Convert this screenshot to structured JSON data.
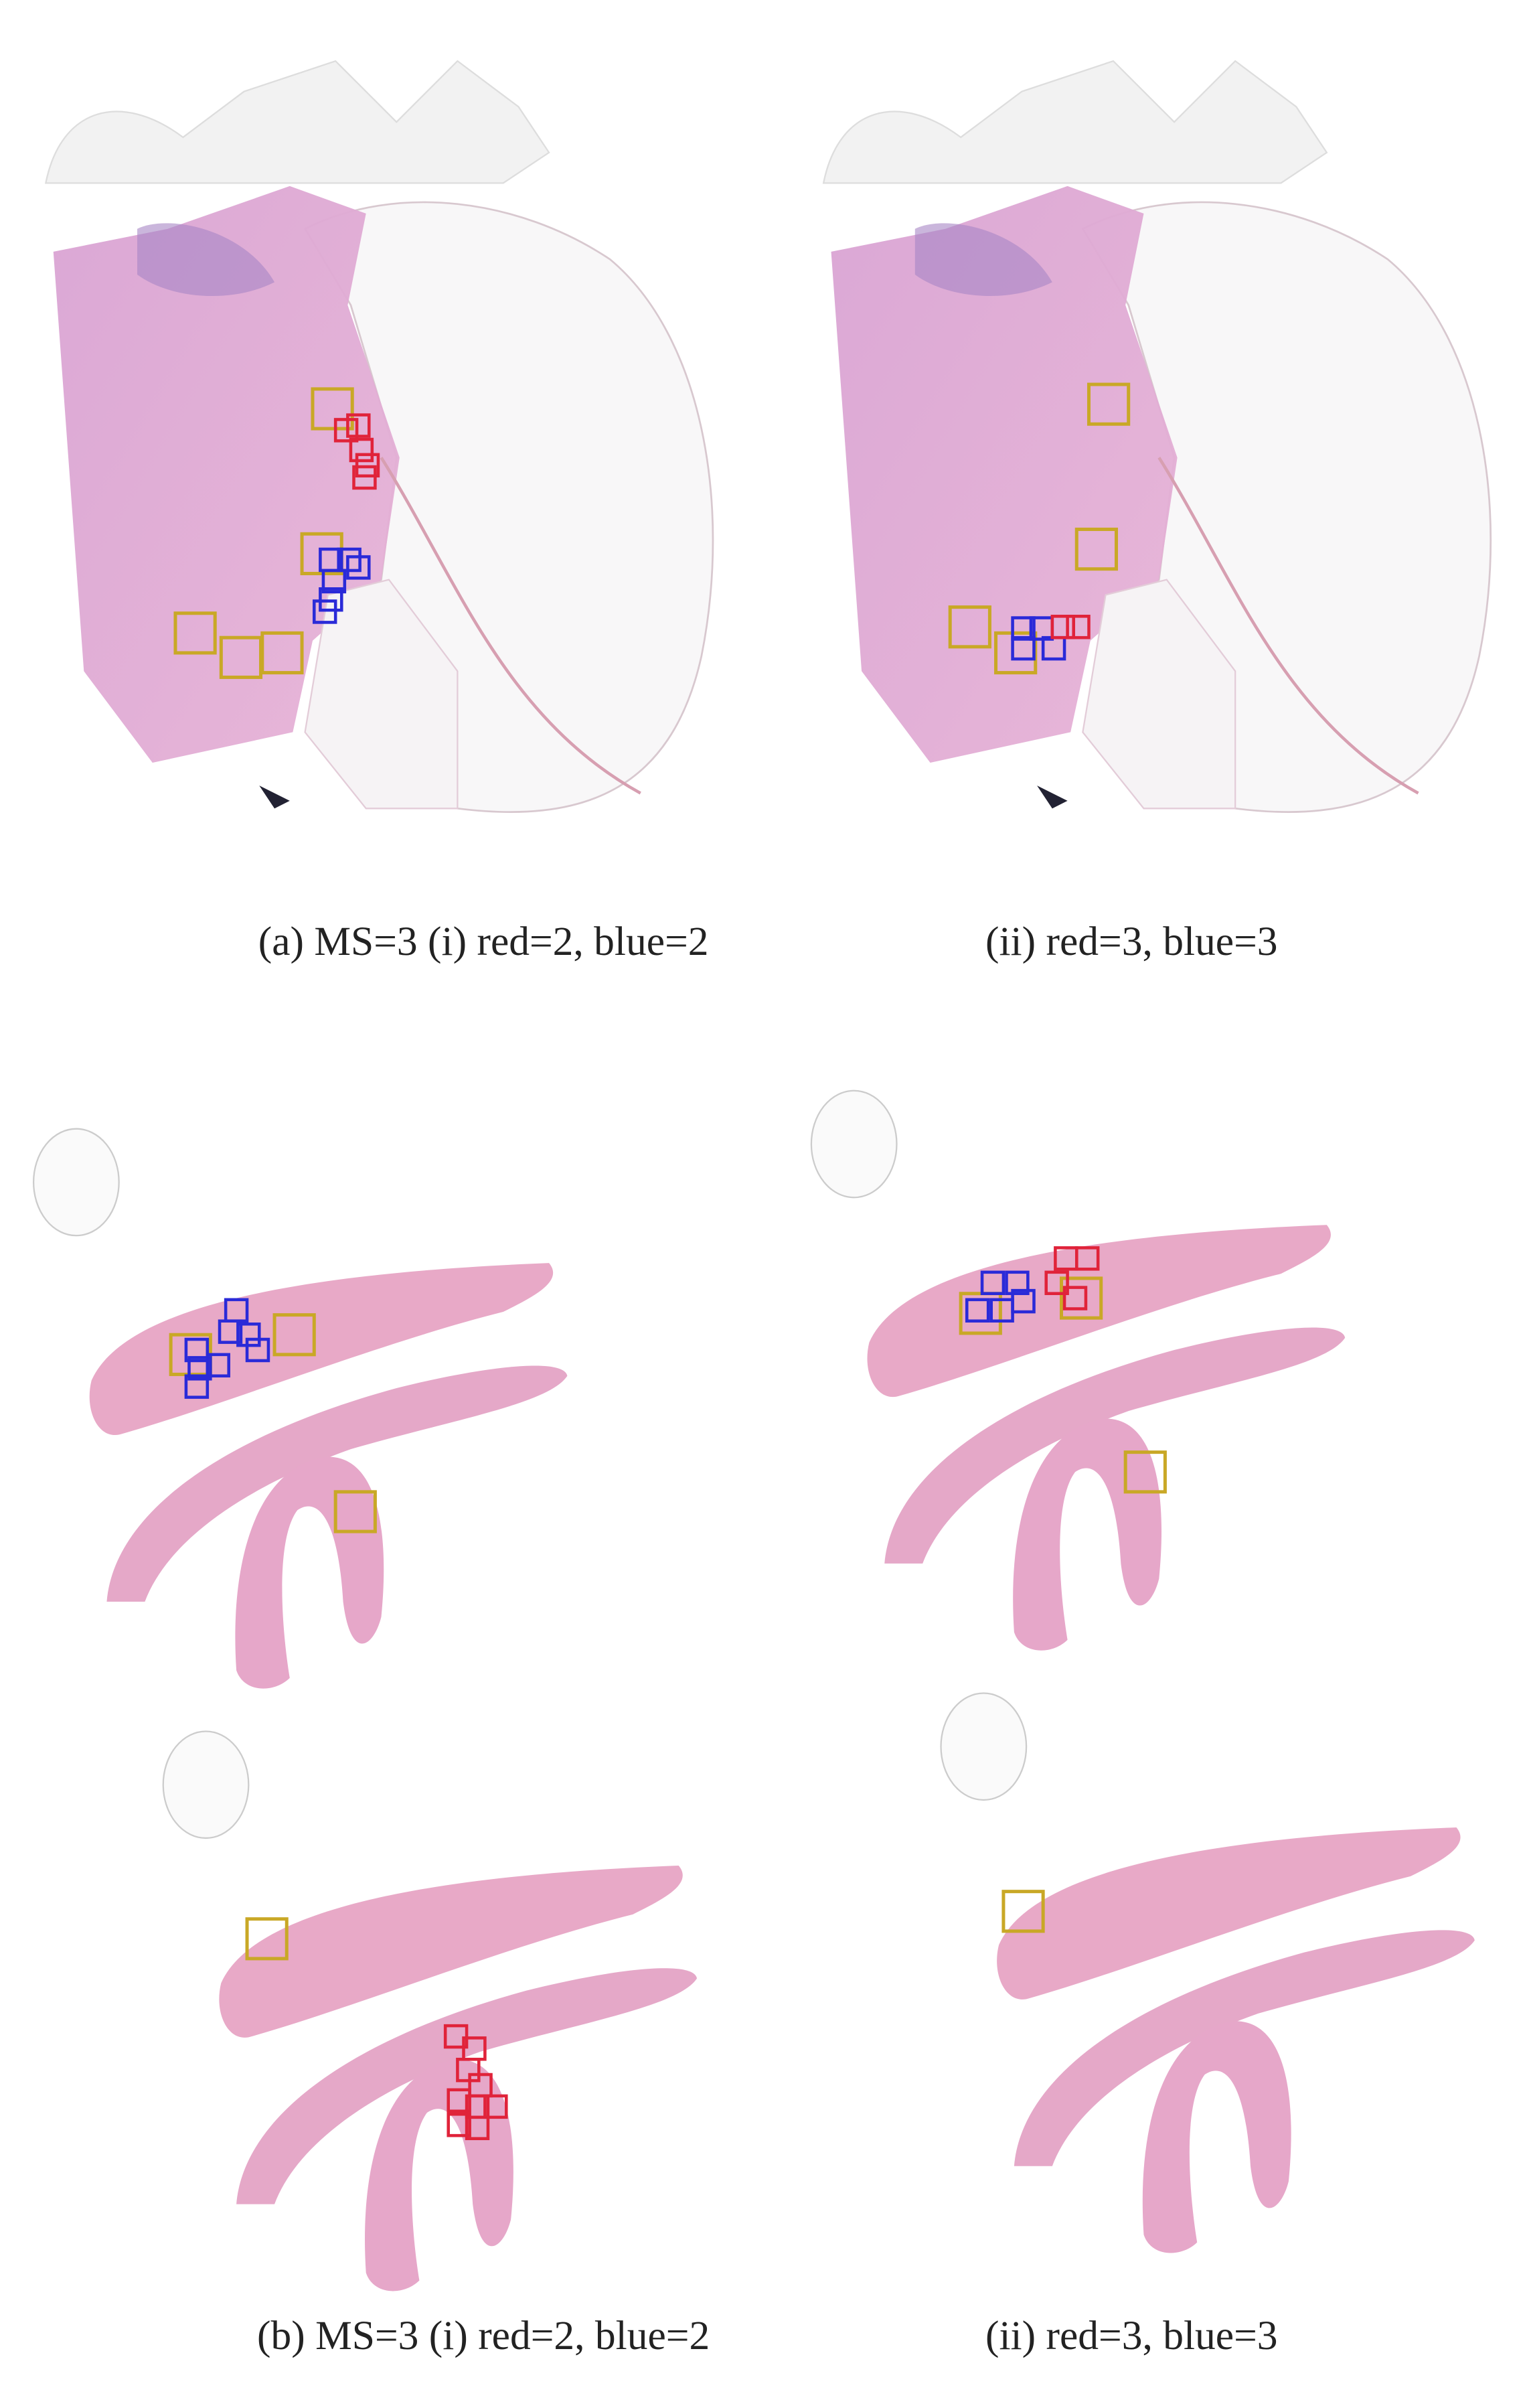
{
  "figure": {
    "panels": [
      {
        "caption": "(a) MS=3 (i) red=2, blue=2"
      },
      {
        "caption": "(ii) red=3, blue=3"
      },
      {
        "caption": "(b) MS=3 (i) red=2, blue=2"
      },
      {
        "caption": "(ii) red=3, blue=3"
      }
    ]
  }
}
